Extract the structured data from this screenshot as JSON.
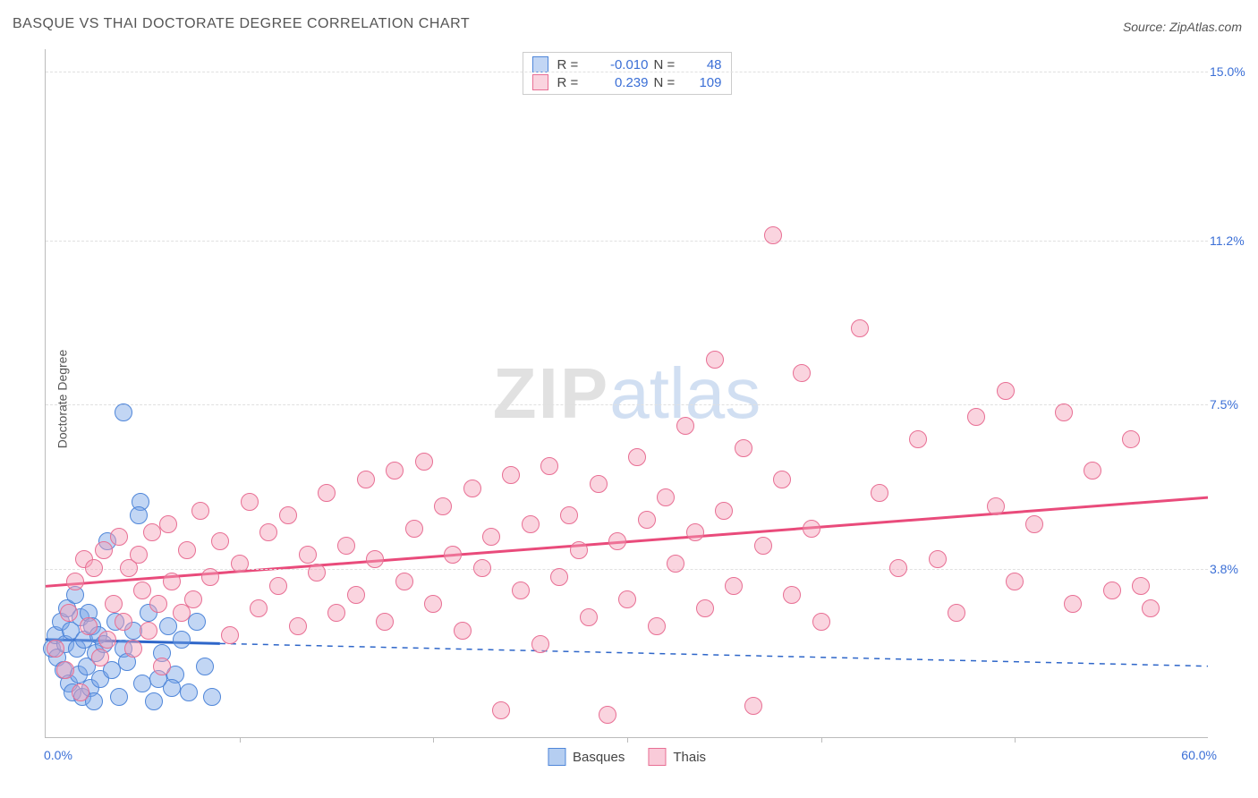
{
  "title": "BASQUE VS THAI DOCTORATE DEGREE CORRELATION CHART",
  "source": "Source: ZipAtlas.com",
  "ylabel": "Doctorate Degree",
  "watermark": {
    "a": "ZIP",
    "b": "atlas"
  },
  "chart": {
    "type": "scatter",
    "background_color": "#ffffff",
    "grid_color": "#e0e0e0",
    "axis_color": "#bbbbbb",
    "tick_label_color": "#3b6fd6",
    "x": {
      "min": 0.0,
      "max": 60.0,
      "min_label": "0.0%",
      "max_label": "60.0%",
      "tick_step": 10.0
    },
    "y": {
      "min": 0.0,
      "max": 15.5,
      "ticks": [
        3.8,
        7.5,
        11.2,
        15.0
      ],
      "tick_labels": [
        "3.8%",
        "7.5%",
        "11.2%",
        "15.0%"
      ]
    },
    "marker_radius": 10,
    "marker_border_width": 1.5,
    "series": [
      {
        "name": "Basques",
        "fill": "rgba(120,165,230,0.45)",
        "stroke": "#4f86d9",
        "R": "-0.010",
        "N": "48",
        "trend": {
          "color": "#2e66c9",
          "width": 3,
          "dash_extend": true,
          "y_at_xmin": 2.2,
          "y_at_xmax": 1.6,
          "solid_until_x": 9.0
        },
        "points": [
          [
            0.3,
            2.0
          ],
          [
            0.5,
            2.3
          ],
          [
            0.6,
            1.8
          ],
          [
            0.8,
            2.6
          ],
          [
            0.9,
            1.5
          ],
          [
            1.0,
            2.1
          ],
          [
            1.1,
            2.9
          ],
          [
            1.2,
            1.2
          ],
          [
            1.3,
            2.4
          ],
          [
            1.4,
            1.0
          ],
          [
            1.5,
            3.2
          ],
          [
            1.6,
            2.0
          ],
          [
            1.7,
            1.4
          ],
          [
            1.8,
            2.7
          ],
          [
            1.9,
            0.9
          ],
          [
            2.0,
            2.2
          ],
          [
            2.1,
            1.6
          ],
          [
            2.2,
            2.8
          ],
          [
            2.3,
            1.1
          ],
          [
            2.4,
            2.5
          ],
          [
            2.5,
            0.8
          ],
          [
            2.6,
            1.9
          ],
          [
            2.7,
            2.3
          ],
          [
            2.8,
            1.3
          ],
          [
            3.0,
            2.1
          ],
          [
            3.2,
            4.4
          ],
          [
            3.4,
            1.5
          ],
          [
            3.6,
            2.6
          ],
          [
            3.8,
            0.9
          ],
          [
            4.0,
            2.0
          ],
          [
            4.2,
            1.7
          ],
          [
            4.5,
            2.4
          ],
          [
            4.0,
            7.3
          ],
          [
            4.9,
            5.3
          ],
          [
            5.0,
            1.2
          ],
          [
            5.3,
            2.8
          ],
          [
            5.6,
            0.8
          ],
          [
            6.0,
            1.9
          ],
          [
            6.3,
            2.5
          ],
          [
            6.7,
            1.4
          ],
          [
            4.8,
            5.0
          ],
          [
            7.0,
            2.2
          ],
          [
            7.4,
            1.0
          ],
          [
            7.8,
            2.6
          ],
          [
            8.2,
            1.6
          ],
          [
            8.6,
            0.9
          ],
          [
            6.5,
            1.1
          ],
          [
            5.8,
            1.3
          ]
        ]
      },
      {
        "name": "Thais",
        "fill": "rgba(244,160,185,0.45)",
        "stroke": "#e86f94",
        "R": "0.239",
        "N": "109",
        "trend": {
          "color": "#e94b7b",
          "width": 3,
          "dash_extend": false,
          "y_at_xmin": 3.4,
          "y_at_xmax": 5.4,
          "solid_until_x": 60.0
        },
        "points": [
          [
            0.5,
            2.0
          ],
          [
            1.0,
            1.5
          ],
          [
            1.2,
            2.8
          ],
          [
            1.5,
            3.5
          ],
          [
            1.8,
            1.0
          ],
          [
            2.0,
            4.0
          ],
          [
            2.2,
            2.5
          ],
          [
            2.5,
            3.8
          ],
          [
            2.8,
            1.8
          ],
          [
            3.0,
            4.2
          ],
          [
            3.2,
            2.2
          ],
          [
            3.5,
            3.0
          ],
          [
            3.8,
            4.5
          ],
          [
            4.0,
            2.6
          ],
          [
            4.3,
            3.8
          ],
          [
            4.5,
            2.0
          ],
          [
            4.8,
            4.1
          ],
          [
            5.0,
            3.3
          ],
          [
            5.3,
            2.4
          ],
          [
            5.5,
            4.6
          ],
          [
            5.8,
            3.0
          ],
          [
            6.0,
            1.6
          ],
          [
            6.3,
            4.8
          ],
          [
            6.5,
            3.5
          ],
          [
            7.0,
            2.8
          ],
          [
            7.3,
            4.2
          ],
          [
            7.6,
            3.1
          ],
          [
            8.0,
            5.1
          ],
          [
            8.5,
            3.6
          ],
          [
            9.0,
            4.4
          ],
          [
            9.5,
            2.3
          ],
          [
            10.0,
            3.9
          ],
          [
            10.5,
            5.3
          ],
          [
            11.0,
            2.9
          ],
          [
            11.5,
            4.6
          ],
          [
            12.0,
            3.4
          ],
          [
            12.5,
            5.0
          ],
          [
            13.0,
            2.5
          ],
          [
            13.5,
            4.1
          ],
          [
            14.0,
            3.7
          ],
          [
            14.5,
            5.5
          ],
          [
            15.0,
            2.8
          ],
          [
            15.5,
            4.3
          ],
          [
            16.0,
            3.2
          ],
          [
            16.5,
            5.8
          ],
          [
            17.0,
            4.0
          ],
          [
            17.5,
            2.6
          ],
          [
            18.0,
            6.0
          ],
          [
            18.5,
            3.5
          ],
          [
            19.0,
            4.7
          ],
          [
            19.5,
            6.2
          ],
          [
            20.0,
            3.0
          ],
          [
            20.5,
            5.2
          ],
          [
            21.0,
            4.1
          ],
          [
            21.5,
            2.4
          ],
          [
            22.0,
            5.6
          ],
          [
            22.5,
            3.8
          ],
          [
            23.0,
            4.5
          ],
          [
            23.5,
            0.6
          ],
          [
            24.0,
            5.9
          ],
          [
            24.5,
            3.3
          ],
          [
            25.0,
            4.8
          ],
          [
            25.5,
            2.1
          ],
          [
            26.0,
            6.1
          ],
          [
            26.5,
            3.6
          ],
          [
            27.0,
            5.0
          ],
          [
            27.5,
            4.2
          ],
          [
            28.0,
            2.7
          ],
          [
            28.5,
            5.7
          ],
          [
            29.0,
            0.5
          ],
          [
            29.5,
            4.4
          ],
          [
            30.0,
            3.1
          ],
          [
            30.5,
            6.3
          ],
          [
            31.0,
            4.9
          ],
          [
            31.5,
            2.5
          ],
          [
            32.0,
            5.4
          ],
          [
            32.5,
            3.9
          ],
          [
            33.0,
            7.0
          ],
          [
            33.5,
            4.6
          ],
          [
            34.0,
            2.9
          ],
          [
            34.5,
            8.5
          ],
          [
            35.0,
            5.1
          ],
          [
            35.5,
            3.4
          ],
          [
            36.0,
            6.5
          ],
          [
            36.5,
            0.7
          ],
          [
            37.0,
            4.3
          ],
          [
            37.5,
            11.3
          ],
          [
            38.0,
            5.8
          ],
          [
            38.5,
            3.2
          ],
          [
            39.0,
            8.2
          ],
          [
            39.5,
            4.7
          ],
          [
            40.0,
            2.6
          ],
          [
            42.0,
            9.2
          ],
          [
            43.0,
            5.5
          ],
          [
            44.0,
            3.8
          ],
          [
            45.0,
            6.7
          ],
          [
            46.0,
            4.0
          ],
          [
            47.0,
            2.8
          ],
          [
            48.0,
            7.2
          ],
          [
            49.0,
            5.2
          ],
          [
            50.0,
            3.5
          ],
          [
            51.0,
            4.8
          ],
          [
            49.5,
            7.8
          ],
          [
            52.5,
            7.3
          ],
          [
            53.0,
            3.0
          ],
          [
            54.0,
            6.0
          ],
          [
            55.0,
            3.3
          ],
          [
            56.0,
            6.7
          ],
          [
            57.0,
            2.9
          ],
          [
            56.5,
            3.4
          ]
        ]
      }
    ]
  },
  "legend_bottom": [
    {
      "label": "Basques",
      "fill": "rgba(120,165,230,0.55)",
      "stroke": "#4f86d9"
    },
    {
      "label": "Thais",
      "fill": "rgba(244,160,185,0.55)",
      "stroke": "#e86f94"
    }
  ]
}
